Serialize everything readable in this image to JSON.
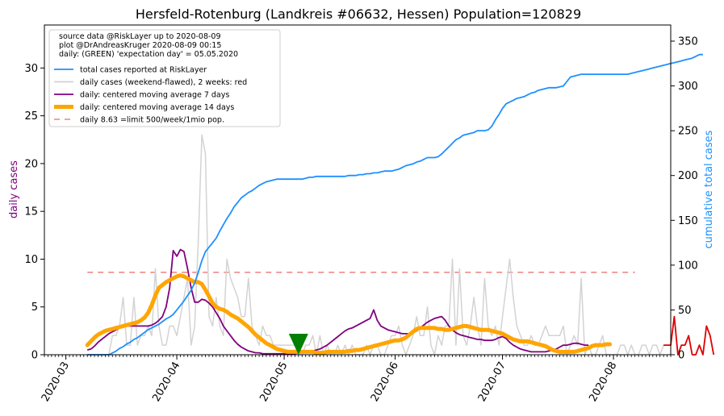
{
  "chart_data": {
    "type": "line",
    "title": "Hersfeld-Rotenburg (Landkreis #06632, Hessen) Population=120829",
    "ylabel_left": "daily cases",
    "ylabel_right": "cumulative total cases",
    "x_start_date": "2020-02-24",
    "x_range": [
      "2020-02-24",
      "2020-08-17"
    ],
    "x_ticks": [
      "2020-03",
      "2020-04",
      "2020-05",
      "2020-06",
      "2020-07",
      "2020-08"
    ],
    "y_left_range": [
      0,
      34.5
    ],
    "y_left_ticks": [
      0,
      5,
      10,
      15,
      20,
      25,
      30
    ],
    "y_right_range": [
      0,
      368
    ],
    "y_right_ticks": [
      0,
      50,
      100,
      150,
      200,
      250,
      300,
      350
    ],
    "legend_position": "top-left",
    "legend_header": [
      "source data @RiskLayer up to 2020-08-09",
      "plot @DrAndreasKruger 2020-08-09 00:15",
      "daily: (GREEN) 'expectation day' = 05.05.2020"
    ],
    "marker": {
      "label": "expectation day",
      "date": "2020-05-05",
      "color": "#008000"
    },
    "series": [
      {
        "name": "total cases reported at RiskLayer",
        "axis": "right",
        "color": "#1e90ff",
        "start": "2020-03-07",
        "values": [
          0,
          0,
          0,
          0,
          0,
          0,
          0,
          2,
          4,
          7,
          9,
          12,
          14,
          17,
          19,
          22,
          25,
          28,
          30,
          32,
          34,
          37,
          40,
          42,
          45,
          50,
          55,
          60,
          66,
          72,
          80,
          92,
          105,
          115,
          120,
          125,
          130,
          138,
          145,
          152,
          158,
          165,
          170,
          175,
          178,
          181,
          183,
          186,
          189,
          191,
          193,
          194,
          195,
          196,
          196,
          196,
          196,
          196,
          196,
          196,
          196,
          197,
          198,
          198,
          199,
          199,
          199,
          199,
          199,
          199,
          199,
          199,
          199,
          200,
          200,
          200,
          201,
          201,
          202,
          202,
          203,
          203,
          204,
          205,
          205,
          205,
          206,
          207,
          209,
          211,
          212,
          213,
          215,
          216,
          218,
          220,
          220,
          220,
          221,
          224,
          228,
          232,
          236,
          240,
          242,
          245,
          246,
          247,
          248,
          250,
          250,
          250,
          251,
          255,
          262,
          268,
          275,
          280,
          282,
          284,
          286,
          287,
          288,
          290,
          292,
          293,
          295,
          296,
          297,
          298,
          298,
          298,
          299,
          300,
          305,
          310,
          311,
          312,
          313,
          313,
          313,
          313,
          313,
          313,
          313,
          313,
          313,
          313,
          313,
          313,
          313,
          313,
          314,
          315,
          316,
          317,
          318,
          319,
          320,
          321,
          322,
          323,
          324,
          325,
          326,
          327,
          328,
          329,
          330,
          331,
          333,
          335,
          335
        ],
        "marker_style": "line"
      },
      {
        "name": "daily cases (weekend-flawed), 2 weeks: red",
        "axis": "left",
        "color": "#d3d3d3",
        "recent_color": "#e00000",
        "start": "2020-03-07",
        "values": [
          0,
          0,
          0,
          0,
          0,
          0,
          0,
          2,
          2,
          3,
          6,
          1,
          1,
          6,
          1,
          2,
          2,
          3,
          2,
          9,
          3,
          1,
          1,
          3,
          3,
          2,
          4,
          6,
          8,
          1,
          3,
          12,
          23,
          21,
          4,
          3,
          6,
          3,
          2,
          10,
          8,
          7,
          6,
          4,
          4,
          8,
          3,
          2,
          1,
          3,
          2,
          2,
          1,
          1,
          1,
          1,
          1,
          1,
          1,
          0,
          0,
          1,
          1,
          2,
          0,
          2,
          0,
          1,
          0,
          0,
          1,
          0,
          1,
          0,
          1,
          0,
          0,
          0,
          1,
          0,
          1,
          1,
          0,
          0,
          1,
          2,
          2,
          3,
          1,
          0,
          1,
          2,
          4,
          2,
          2,
          5,
          1,
          0,
          2,
          1,
          3,
          3,
          10,
          1,
          9,
          2,
          1,
          3,
          6,
          3,
          1,
          8,
          3,
          2,
          3,
          1,
          4,
          7,
          10,
          6,
          3,
          2,
          1,
          1,
          2,
          1,
          1,
          2,
          3,
          2,
          2,
          2,
          2,
          3,
          0,
          1,
          2,
          1,
          8,
          0,
          1,
          0,
          0,
          1,
          2,
          0,
          0,
          0,
          0,
          1,
          1,
          0,
          1,
          0,
          0,
          1,
          1,
          0,
          1,
          1,
          0,
          1,
          1,
          1,
          4,
          0,
          1,
          1,
          2,
          0,
          0,
          1,
          0,
          3,
          2,
          0
        ],
        "recent_values": [
          1,
          1,
          1,
          4,
          0,
          1,
          1,
          2,
          0,
          0,
          1,
          0,
          3,
          2,
          0
        ]
      },
      {
        "name": "daily: centered moving average 7 days",
        "axis": "left",
        "color": "#800080",
        "start": "2020-03-07",
        "values": [
          0.5,
          0.6,
          0.9,
          1.3,
          1.6,
          1.9,
          2.2,
          2.4,
          2.6,
          2.8,
          2.9,
          3.0,
          3.0,
          3.0,
          3.0,
          3.0,
          3.0,
          3.0,
          3.1,
          3.3,
          3.6,
          4.0,
          5.0,
          7.0,
          10.9,
          10.3,
          11.0,
          10.8,
          9.0,
          7.0,
          5.5,
          5.5,
          5.8,
          5.7,
          5.4,
          5.0,
          4.4,
          3.8,
          3.0,
          2.5,
          2.0,
          1.5,
          1.1,
          0.8,
          0.6,
          0.4,
          0.3,
          0.2,
          0.2,
          0.1,
          0.1,
          0.1,
          0.1,
          0.1,
          0.1,
          0.1,
          0.1,
          0.1,
          0.1,
          0.2,
          0.3,
          0.3,
          0.3,
          0.4,
          0.5,
          0.6,
          0.8,
          1.0,
          1.3,
          1.6,
          1.9,
          2.2,
          2.5,
          2.7,
          2.8,
          3.0,
          3.2,
          3.4,
          3.6,
          3.8,
          4.7,
          3.6,
          3.0,
          2.8,
          2.6,
          2.5,
          2.4,
          2.3,
          2.2,
          2.2,
          2.2,
          2.3,
          2.5,
          2.8,
          3.1,
          3.4,
          3.6,
          3.8,
          3.9,
          4.0,
          3.6,
          3.0,
          2.6,
          2.3,
          2.1,
          2.0,
          1.9,
          1.8,
          1.7,
          1.6,
          1.6,
          1.5,
          1.5,
          1.5,
          1.6,
          1.8,
          1.9,
          1.7,
          1.3,
          1.0,
          0.8,
          0.6,
          0.5,
          0.4,
          0.3,
          0.3,
          0.3,
          0.3,
          0.3,
          0.4,
          0.5,
          0.6,
          0.8,
          1.0,
          1.0,
          1.1,
          1.2,
          1.2,
          1.1,
          1.0,
          1.0
        ]
      },
      {
        "name": "daily: centered moving average 14 days",
        "axis": "left",
        "color": "#ffa500",
        "start": "2020-03-07",
        "values": [
          1.0,
          1.4,
          1.8,
          2.1,
          2.3,
          2.5,
          2.6,
          2.7,
          2.8,
          2.9,
          3.0,
          3.1,
          3.2,
          3.3,
          3.4,
          3.6,
          3.9,
          4.4,
          5.2,
          6.2,
          7.0,
          7.3,
          7.6,
          7.8,
          8.0,
          8.2,
          8.3,
          8.2,
          8.0,
          7.8,
          7.6,
          7.6,
          7.4,
          6.8,
          6.1,
          5.4,
          5.0,
          4.8,
          4.7,
          4.5,
          4.2,
          4.0,
          3.8,
          3.5,
          3.2,
          2.9,
          2.5,
          2.1,
          1.8,
          1.5,
          1.2,
          1.0,
          0.8,
          0.6,
          0.5,
          0.4,
          0.3,
          0.3,
          0.3,
          0.3,
          0.3,
          0.3,
          0.3,
          0.3,
          0.2,
          0.2,
          0.2,
          0.3,
          0.3,
          0.3,
          0.3,
          0.3,
          0.3,
          0.4,
          0.4,
          0.5,
          0.5,
          0.6,
          0.7,
          0.8,
          0.9,
          1.0,
          1.1,
          1.2,
          1.3,
          1.4,
          1.5,
          1.5,
          1.6,
          1.8,
          2.1,
          2.4,
          2.7,
          2.8,
          2.8,
          2.8,
          2.8,
          2.8,
          2.7,
          2.7,
          2.6,
          2.6,
          2.7,
          2.8,
          2.9,
          3.0,
          3.0,
          2.9,
          2.8,
          2.7,
          2.6,
          2.6,
          2.6,
          2.5,
          2.4,
          2.3,
          2.2,
          2.0,
          1.8,
          1.6,
          1.5,
          1.4,
          1.4,
          1.4,
          1.3,
          1.2,
          1.1,
          1.0,
          0.9,
          0.7,
          0.5,
          0.4,
          0.3,
          0.3,
          0.3,
          0.3,
          0.3,
          0.4,
          0.5,
          0.6,
          0.7,
          0.9,
          1.0,
          1.0,
          1.0,
          1.1,
          1.1
        ]
      },
      {
        "name": "daily 8.63 =limit 500/week/1mio pop.",
        "axis": "left",
        "color": "#f08080",
        "style": "dashed",
        "constant": 8.63,
        "x_from": "2020-03-07",
        "x_to": "2020-08-07"
      }
    ]
  }
}
